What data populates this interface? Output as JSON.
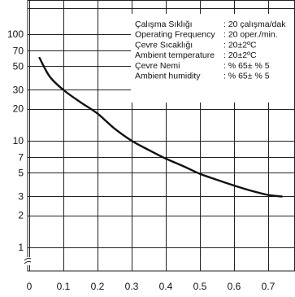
{
  "chart_data": {
    "type": "line",
    "title": "",
    "xlabel": "",
    "ylabel": "",
    "y_scale": "log",
    "grid": true,
    "x_ticks": [
      "0",
      "0.1",
      "0.2",
      "0.3",
      "0.4",
      "0.5",
      "0.6",
      "0.7"
    ],
    "x_tick_values": [
      0,
      0.1,
      0.2,
      0.3,
      0.4,
      0.5,
      0.6,
      0.7
    ],
    "y_ticks": [
      "1",
      "2",
      "3",
      "5",
      "7",
      "10",
      "20",
      "30",
      "50",
      "70",
      "100"
    ],
    "y_tick_values": [
      1,
      2,
      3,
      5,
      7,
      10,
      20,
      30,
      50,
      70,
      100
    ],
    "xlim": [
      0,
      0.75
    ],
    "ylim": [
      1,
      150
    ],
    "axis_break": "y",
    "series": [
      {
        "x": [
          0.03,
          0.06,
          0.1,
          0.15,
          0.2,
          0.25,
          0.3,
          0.35,
          0.4,
          0.45,
          0.5,
          0.55,
          0.6,
          0.65,
          0.7,
          0.74
        ],
        "y": [
          60,
          40,
          30,
          23,
          18,
          13,
          10,
          8.2,
          6.8,
          5.8,
          4.9,
          4.3,
          3.8,
          3.4,
          3.1,
          3.0
        ],
        "color": "#111111"
      }
    ],
    "conditions": [
      {
        "label": "Çalışma Sıklığı",
        "value": ": 20 çalışma/dak"
      },
      {
        "label": "Operating Frequency",
        "value": ": 20 oper./min."
      },
      {
        "label": "Çevre Sıcaklığı",
        "value": ": 20±2ºC"
      },
      {
        "label": "Ambient temperature",
        "value": ": 20±2ºC"
      },
      {
        "label": "Çevre Nemi",
        "value": ": % 65± % 5"
      },
      {
        "label": "Ambient humidity",
        "value": ": % 65± % 5"
      }
    ]
  }
}
